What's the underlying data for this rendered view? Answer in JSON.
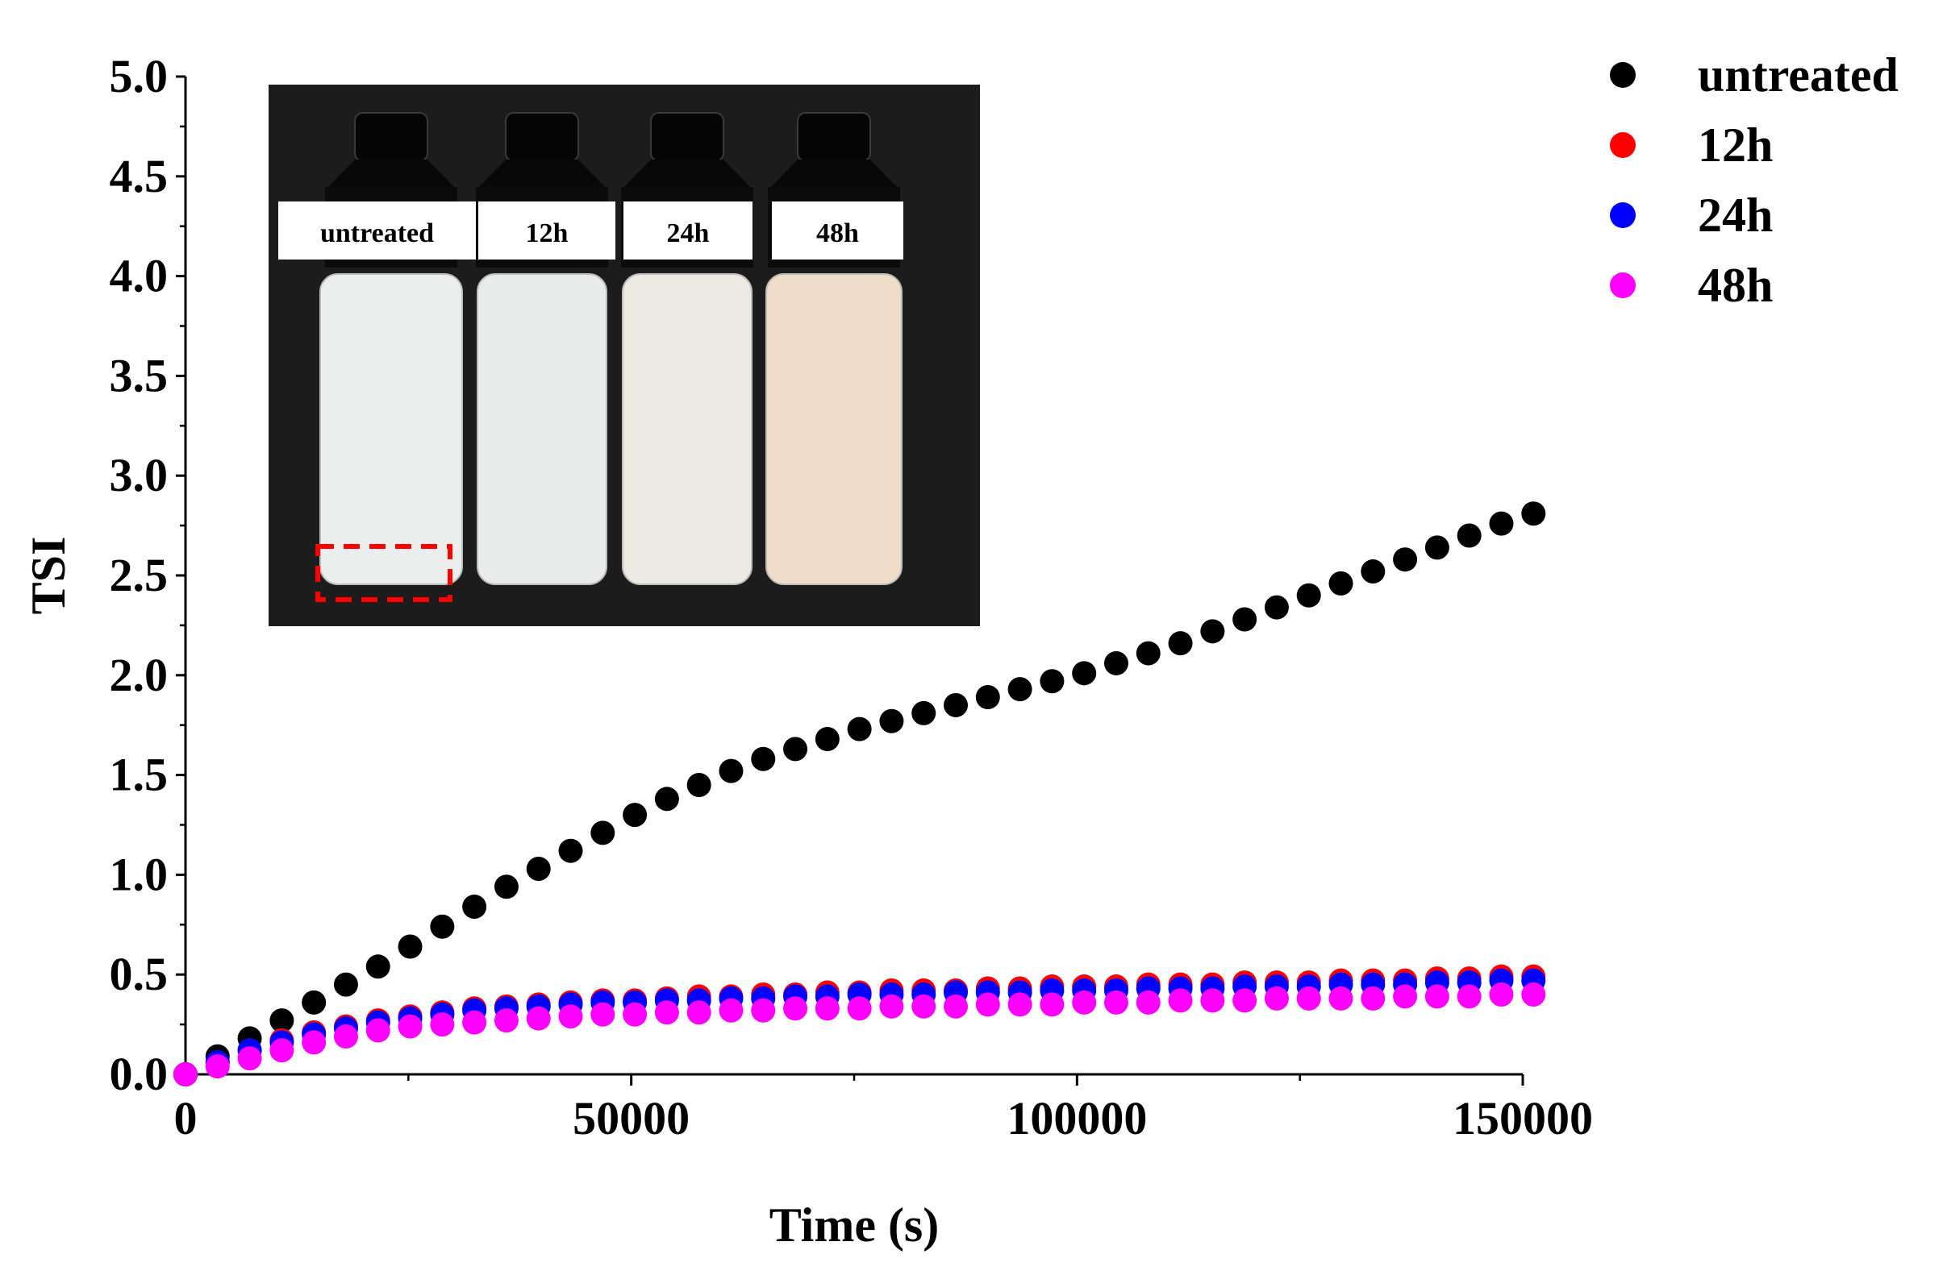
{
  "chart_data": {
    "type": "scatter",
    "title": "",
    "xlabel": "Time (s)",
    "ylabel": "TSI",
    "xlim": [
      0,
      150000
    ],
    "ylim": [
      0,
      5.0
    ],
    "xticks": [
      0,
      50000,
      100000,
      150000
    ],
    "xtick_labels": [
      "0",
      "50000",
      "100000",
      "150000"
    ],
    "yticks": [
      0.0,
      0.5,
      1.0,
      1.5,
      2.0,
      2.5,
      3.0,
      3.5,
      4.0,
      4.5,
      5.0
    ],
    "ytick_labels": [
      "0.0",
      "0.5",
      "1.0",
      "1.5",
      "2.0",
      "2.5",
      "3.0",
      "3.5",
      "4.0",
      "4.5",
      "5.0"
    ],
    "grid": false,
    "legend_position": "right",
    "x": [
      0,
      3600,
      7200,
      10800,
      14400,
      18000,
      21600,
      25200,
      28800,
      32400,
      36000,
      39600,
      43200,
      46800,
      50400,
      54000,
      57600,
      61200,
      64800,
      68400,
      72000,
      75600,
      79200,
      82800,
      86400,
      90000,
      93600,
      97200,
      100800,
      104400,
      108000,
      111600,
      115200,
      118800,
      122400,
      126000,
      129600,
      133200,
      136800,
      140400,
      144000,
      147600,
      151200
    ],
    "series": [
      {
        "name": "untreated",
        "color": "#000000",
        "values": [
          0.0,
          0.09,
          0.18,
          0.27,
          0.36,
          0.45,
          0.54,
          0.64,
          0.74,
          0.84,
          0.94,
          1.03,
          1.12,
          1.21,
          1.3,
          1.38,
          1.45,
          1.52,
          1.58,
          1.63,
          1.68,
          1.73,
          1.77,
          1.81,
          1.85,
          1.89,
          1.93,
          1.97,
          2.01,
          2.06,
          2.11,
          2.16,
          2.22,
          2.28,
          2.34,
          2.4,
          2.46,
          2.52,
          2.58,
          2.64,
          2.7,
          2.76,
          2.81
        ]
      },
      {
        "name": "12h",
        "color": "#ff0000",
        "values": [
          0.0,
          0.06,
          0.12,
          0.17,
          0.21,
          0.24,
          0.27,
          0.29,
          0.31,
          0.33,
          0.34,
          0.35,
          0.36,
          0.37,
          0.37,
          0.38,
          0.39,
          0.39,
          0.4,
          0.4,
          0.41,
          0.41,
          0.42,
          0.42,
          0.42,
          0.43,
          0.43,
          0.44,
          0.44,
          0.44,
          0.45,
          0.45,
          0.45,
          0.46,
          0.46,
          0.46,
          0.47,
          0.47,
          0.47,
          0.48,
          0.48,
          0.49,
          0.49
        ]
      },
      {
        "name": "24h",
        "color": "#0000ff",
        "values": [
          0.0,
          0.06,
          0.12,
          0.16,
          0.2,
          0.23,
          0.26,
          0.28,
          0.3,
          0.32,
          0.33,
          0.34,
          0.35,
          0.36,
          0.36,
          0.37,
          0.37,
          0.38,
          0.38,
          0.39,
          0.39,
          0.4,
          0.4,
          0.4,
          0.41,
          0.41,
          0.41,
          0.42,
          0.42,
          0.42,
          0.43,
          0.43,
          0.43,
          0.44,
          0.44,
          0.44,
          0.45,
          0.45,
          0.45,
          0.46,
          0.46,
          0.47,
          0.47
        ]
      },
      {
        "name": "48h",
        "color": "#ff00ff",
        "values": [
          0.0,
          0.04,
          0.08,
          0.12,
          0.16,
          0.19,
          0.22,
          0.24,
          0.25,
          0.26,
          0.27,
          0.28,
          0.29,
          0.3,
          0.3,
          0.31,
          0.31,
          0.32,
          0.32,
          0.33,
          0.33,
          0.33,
          0.34,
          0.34,
          0.34,
          0.35,
          0.35,
          0.35,
          0.36,
          0.36,
          0.36,
          0.37,
          0.37,
          0.37,
          0.38,
          0.38,
          0.38,
          0.38,
          0.39,
          0.39,
          0.39,
          0.4,
          0.4
        ]
      }
    ],
    "inset_photo": {
      "labels": [
        "untreated",
        "12h",
        "24h",
        "48h"
      ],
      "bottle_fill_colors": [
        "#eceeee",
        "#e8ebea",
        "#ece9e2",
        "#efdcc9"
      ],
      "highlight_color": "#ff0000"
    }
  }
}
